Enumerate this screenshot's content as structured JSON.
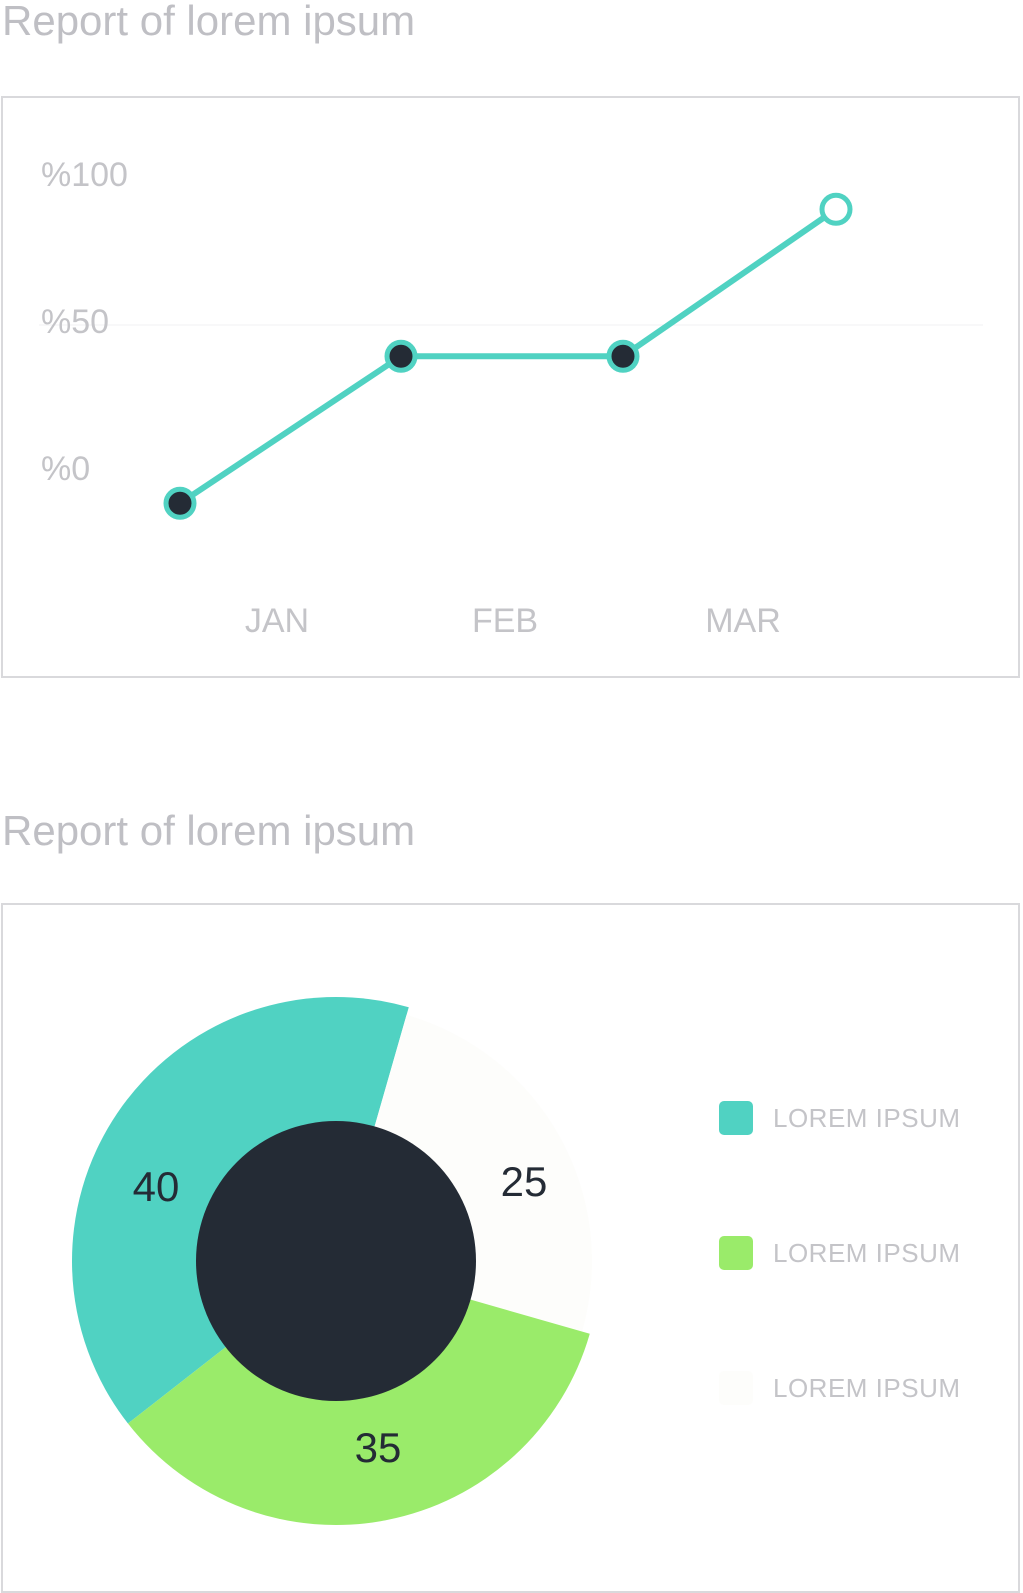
{
  "sections": [
    {
      "title": "Report of lorem ipsum"
    },
    {
      "title": "Report of lorem ipsum"
    }
  ],
  "colors": {
    "teal": "#50d2c2",
    "green": "#9aeb6a",
    "light": "#fdfdfb",
    "dark": "#242b35",
    "label_gray": "#c4c4c8"
  },
  "chart_data": [
    {
      "type": "line",
      "title": "Report of lorem ipsum",
      "y_tick_labels": [
        "%100",
        "%50",
        "%0"
      ],
      "y_ticks": [
        100,
        50,
        0
      ],
      "x_tick_labels": [
        "JAN",
        "FEB",
        "MAR"
      ],
      "series": [
        {
          "values": [
            -12,
            38,
            38,
            88
          ],
          "markers": [
            "filled",
            "filled",
            "filled",
            "hollow"
          ]
        }
      ],
      "grid": false
    },
    {
      "type": "pie",
      "title": "Report of lorem ipsum",
      "style": "donut",
      "slices": [
        {
          "label": "LOREM IPSUM",
          "value": 40,
          "color": "#50d2c2"
        },
        {
          "label": "LOREM IPSUM",
          "value": 35,
          "color": "#9aeb6a"
        },
        {
          "label": "LOREM IPSUM",
          "value": 25,
          "color": "#fdfdfb"
        }
      ],
      "legend": "right"
    }
  ]
}
